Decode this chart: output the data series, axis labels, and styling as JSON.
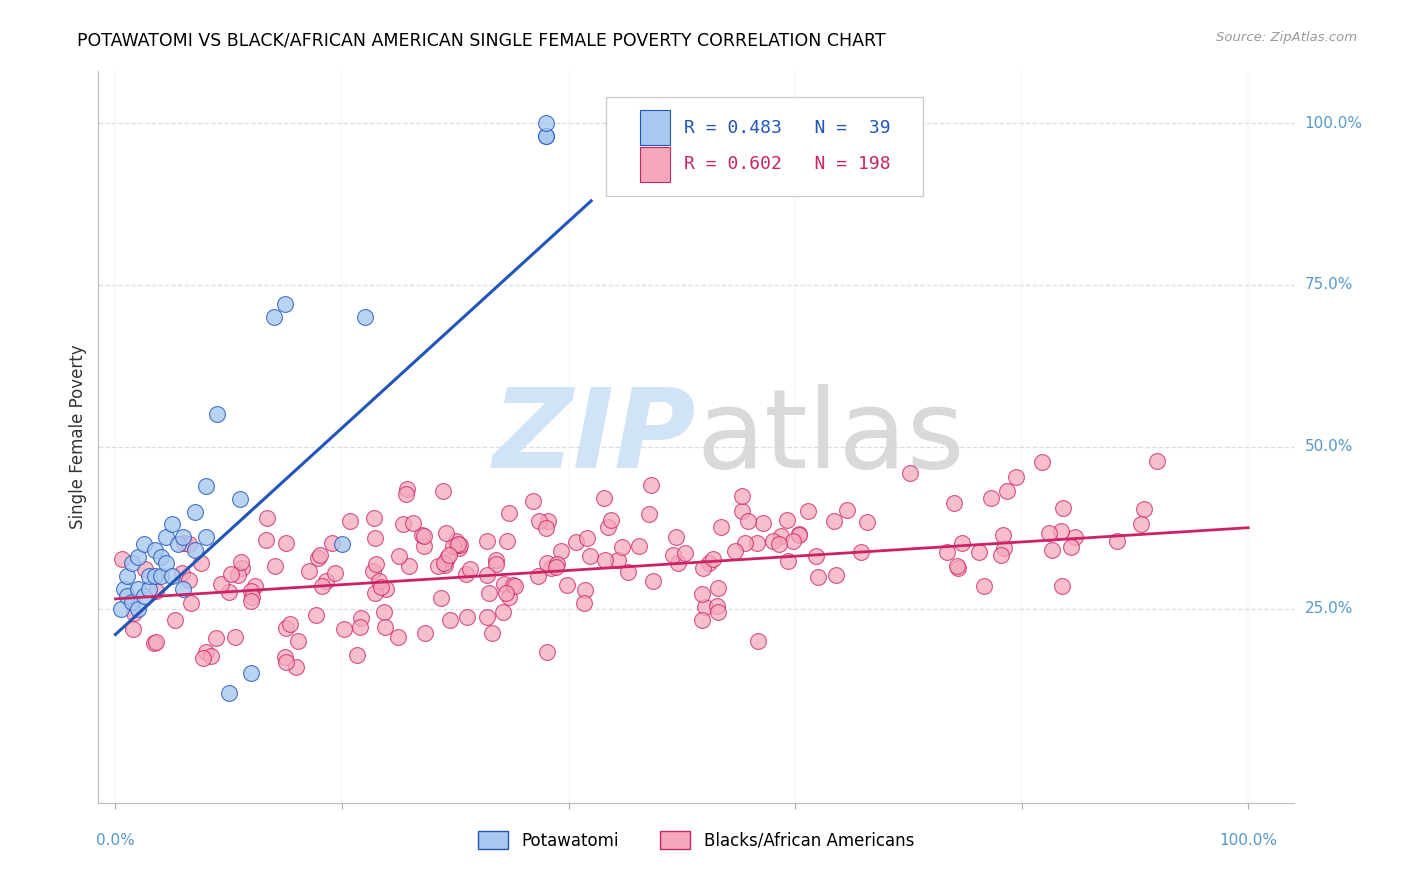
{
  "title": "POTAWATOMI VS BLACK/AFRICAN AMERICAN SINGLE FEMALE POVERTY CORRELATION CHART",
  "source": "Source: ZipAtlas.com",
  "ylabel": "Single Female Poverty",
  "legend_label1": "Potawatomi",
  "legend_label2": "Blacks/African Americans",
  "R1": 0.483,
  "N1": 39,
  "R2": 0.602,
  "N2": 198,
  "color_blue": "#a8c8f0",
  "color_pink": "#f5a8bc",
  "line_blue": "#2255bb",
  "line_pink": "#cc2266",
  "ytick_color": "#5599cc",
  "blue_x": [
    0.005,
    0.008,
    0.01,
    0.01,
    0.015,
    0.015,
    0.02,
    0.02,
    0.02,
    0.025,
    0.025,
    0.03,
    0.03,
    0.035,
    0.035,
    0.04,
    0.04,
    0.045,
    0.045,
    0.05,
    0.05,
    0.055,
    0.06,
    0.06,
    0.07,
    0.07,
    0.08,
    0.08,
    0.09,
    0.1,
    0.11,
    0.12,
    0.14,
    0.15,
    0.2,
    0.22,
    0.38,
    0.38,
    0.38
  ],
  "blue_y": [
    0.25,
    0.28,
    0.27,
    0.3,
    0.26,
    0.32,
    0.25,
    0.28,
    0.33,
    0.27,
    0.35,
    0.28,
    0.3,
    0.3,
    0.34,
    0.3,
    0.33,
    0.32,
    0.36,
    0.3,
    0.38,
    0.35,
    0.28,
    0.36,
    0.34,
    0.4,
    0.36,
    0.44,
    0.55,
    0.12,
    0.42,
    0.15,
    0.7,
    0.72,
    0.35,
    0.7,
    0.98,
    0.98,
    1.0
  ],
  "blue_line_x0": 0.0,
  "blue_line_y0": 0.21,
  "blue_line_x1": 0.42,
  "blue_line_y1": 0.88,
  "pink_line_x0": 0.0,
  "pink_line_y0": 0.265,
  "pink_line_x1": 1.0,
  "pink_line_y1": 0.375,
  "xmin": 0.0,
  "xmax": 1.0,
  "ymin": 0.0,
  "ymax": 1.05,
  "yticks": [
    0.25,
    0.5,
    0.75,
    1.0
  ],
  "ytick_labels": [
    "25.0%",
    "50.0%",
    "75.0%",
    "100.0%"
  ],
  "grid_color": "#dddddd",
  "watermark_zip_color": "#cce0f5",
  "watermark_atlas_color": "#d5d5d5"
}
